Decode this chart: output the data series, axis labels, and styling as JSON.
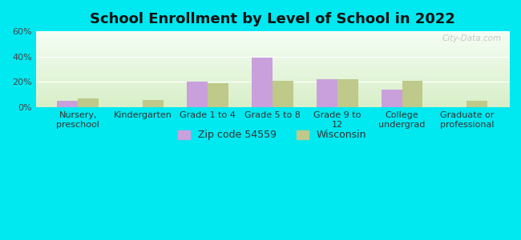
{
  "title": "School Enrollment by Level of School in 2022",
  "categories": [
    "Nursery,\npreschool",
    "Kindergarten",
    "Grade 1 to 4",
    "Grade 5 to 8",
    "Grade 9 to\n12",
    "College\nundergrad",
    "Graduate or\nprofessional"
  ],
  "zip_values": [
    5,
    0,
    20,
    39,
    22,
    14,
    0
  ],
  "wi_values": [
    7,
    6,
    19,
    21,
    22,
    21,
    5
  ],
  "zip_color": "#c9a0dc",
  "wi_color": "#bec98a",
  "background_outer": "#00e8f0",
  "background_inner_top": "#f5fef5",
  "background_inner_bottom": "#d8efc8",
  "ylim": [
    0,
    60
  ],
  "yticks": [
    0,
    20,
    40,
    60
  ],
  "ytick_labels": [
    "0%",
    "20%",
    "40%",
    "60%"
  ],
  "legend_label_zip": "Zip code 54559",
  "legend_label_wi": "Wisconsin",
  "bar_width": 0.32,
  "title_fontsize": 13,
  "tick_fontsize": 8,
  "legend_fontsize": 9,
  "watermark": "City-Data.com"
}
